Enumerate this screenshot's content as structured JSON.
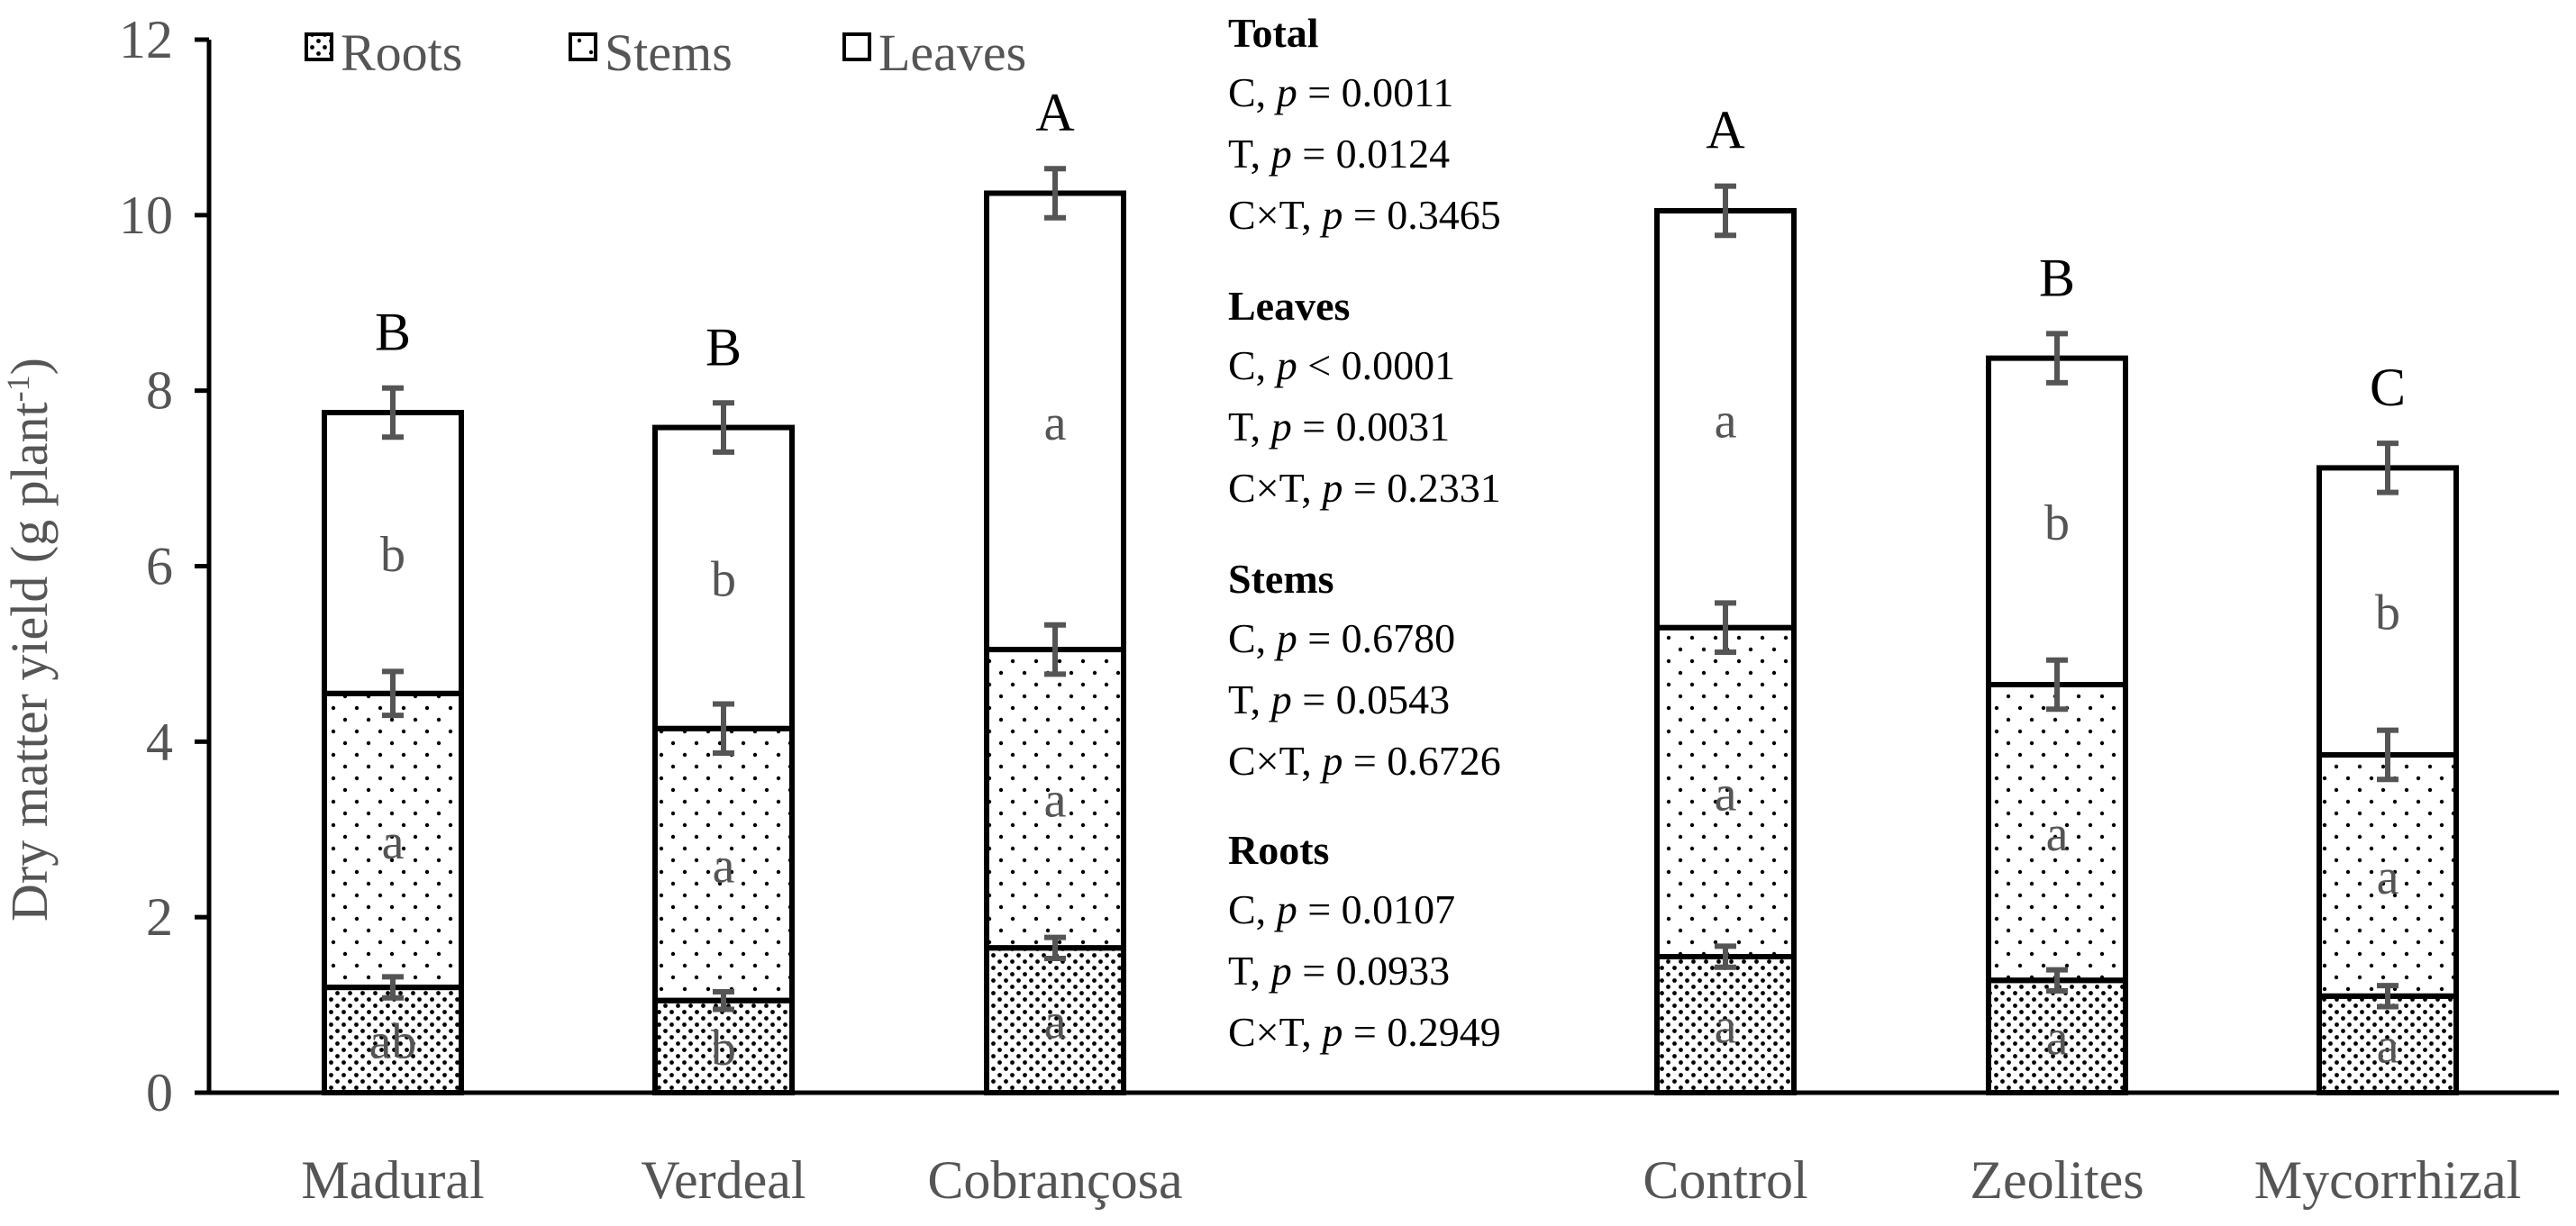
{
  "chart_data": {
    "type": "bar",
    "stacked": true,
    "title": "",
    "xlabel": "",
    "ylabel": "Dry matter yield (g plant",
    "ylabel_superscript": "-1",
    "ylabel_close": ")",
    "ylim": [
      0,
      12
    ],
    "yticks": [
      0,
      2,
      4,
      6,
      8,
      10,
      12
    ],
    "categories": [
      "Madural",
      "Verdeal",
      "Cobrançosa",
      "Control",
      "Zeolites",
      "Mycorrhizal"
    ],
    "series": [
      {
        "name": "Roots",
        "pattern": "dense-dots",
        "values": [
          1.2,
          1.05,
          1.65,
          1.55,
          1.28,
          1.1
        ],
        "errors": [
          0.12,
          0.1,
          0.12,
          0.12,
          0.12,
          0.12
        ],
        "letters": [
          "ab",
          "b",
          "a",
          "a",
          "a",
          "a"
        ]
      },
      {
        "name": "Stems",
        "pattern": "sparse-dots",
        "values": [
          3.35,
          3.1,
          3.4,
          3.75,
          3.37,
          2.75
        ],
        "errors": [
          0.25,
          0.28,
          0.28,
          0.28,
          0.28,
          0.28
        ],
        "letters": [
          "a",
          "a",
          "a",
          "a",
          "a",
          "a"
        ]
      },
      {
        "name": "Leaves",
        "pattern": "none",
        "values": [
          3.2,
          3.43,
          5.2,
          4.75,
          3.72,
          3.27
        ],
        "errors": [
          0.28,
          0.28,
          0.28,
          0.28,
          0.28,
          0.28
        ],
        "letters": [
          "b",
          "b",
          "a",
          "a",
          "b",
          "b"
        ]
      }
    ],
    "total_letters": [
      "B",
      "B",
      "A",
      "A",
      "B",
      "C"
    ],
    "legend": {
      "placement": "top-left",
      "entries": [
        "Roots",
        "Stems",
        "Leaves"
      ]
    },
    "annotations": [
      {
        "heading": "Total",
        "lines": [
          {
            "factor": "C, ",
            "p": "p",
            "rest": " = 0.0011"
          },
          {
            "factor": "T, ",
            "p": "p",
            "rest": " = 0.0124"
          },
          {
            "factor": "C×T, ",
            "p": "p",
            "rest": " = 0.3465"
          }
        ]
      },
      {
        "heading": "Leaves",
        "lines": [
          {
            "factor": "C, ",
            "p": "p",
            "rest": " < 0.0001"
          },
          {
            "factor": "T, ",
            "p": "p",
            "rest": " = 0.0031"
          },
          {
            "factor": "C×T, ",
            "p": "p",
            "rest": " = 0.2331"
          }
        ]
      },
      {
        "heading": "Stems",
        "lines": [
          {
            "factor": "C, ",
            "p": "p",
            "rest": " = 0.6780"
          },
          {
            "factor": "T, ",
            "p": "p",
            "rest": " = 0.0543"
          },
          {
            "factor": "C×T, ",
            "p": "p",
            "rest": " = 0.6726"
          }
        ]
      },
      {
        "heading": "Roots",
        "lines": [
          {
            "factor": "C, ",
            "p": "p",
            "rest": " = 0.0107"
          },
          {
            "factor": "T, ",
            "p": "p",
            "rest": " = 0.0933"
          },
          {
            "factor": "C×T, ",
            "p": "p",
            "rest": " = 0.2949"
          }
        ]
      }
    ]
  },
  "colors": {
    "background": "#ffffff",
    "bar_stroke": "#000000",
    "axis": "#000000",
    "text": "#555555",
    "error_bar": "#555555",
    "pattern_dot": "#000000",
    "stats_text": "#000000"
  }
}
